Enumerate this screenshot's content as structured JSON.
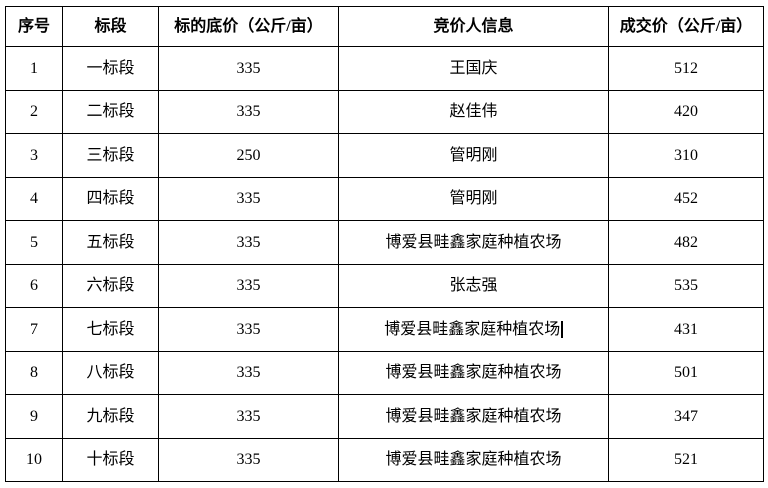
{
  "table": {
    "headers": {
      "serial": "序号",
      "section": "标段",
      "base_price": "标的底价（公斤/亩）",
      "bidder_info": "竞价人信息",
      "final_price": "成交价（公斤/亩）"
    },
    "rows": [
      [
        "1",
        "一标段",
        "335",
        "王国庆",
        "512"
      ],
      [
        "2",
        "二标段",
        "335",
        "赵佳伟",
        "420"
      ],
      [
        "3",
        "三标段",
        "250",
        "管明刚",
        "310"
      ],
      [
        "4",
        "四标段",
        "335",
        "管明刚",
        "452"
      ],
      [
        "5",
        "五标段",
        "335",
        "博爱县畦鑫家庭种植农场",
        "482"
      ],
      [
        "6",
        "六标段",
        "335",
        "张志强",
        "535"
      ],
      [
        "7",
        "七标段",
        "335",
        "博爱县畦鑫家庭种植农场",
        "431"
      ],
      [
        "8",
        "八标段",
        "335",
        "博爱县畦鑫家庭种植农场",
        "501"
      ],
      [
        "9",
        "九标段",
        "335",
        "博爱县畦鑫家庭种植农场",
        "347"
      ],
      [
        "10",
        "十标段",
        "335",
        "博爱县畦鑫家庭种植农场",
        "521"
      ]
    ],
    "text_cursor": {
      "visible": true,
      "row": "7",
      "column": "竞价人信息"
    }
  }
}
